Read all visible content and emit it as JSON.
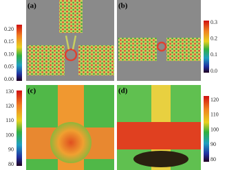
{
  "panels": [
    {
      "label": "(a)",
      "colorbar_ticks": [
        "0.20",
        "0.15",
        "0.10",
        "0.05",
        "0.00"
      ]
    },
    {
      "label": "(b)",
      "colorbar_ticks": [
        "0.3",
        "0.2",
        "0.1",
        "0.0"
      ]
    },
    {
      "label": "(c)",
      "colorbar_ticks": [
        "130",
        "120",
        "110",
        "100",
        "90",
        "80"
      ]
    },
    {
      "label": "(d)",
      "colorbar_ticks": [
        "120",
        "110",
        "100",
        "90",
        "80"
      ]
    }
  ]
}
